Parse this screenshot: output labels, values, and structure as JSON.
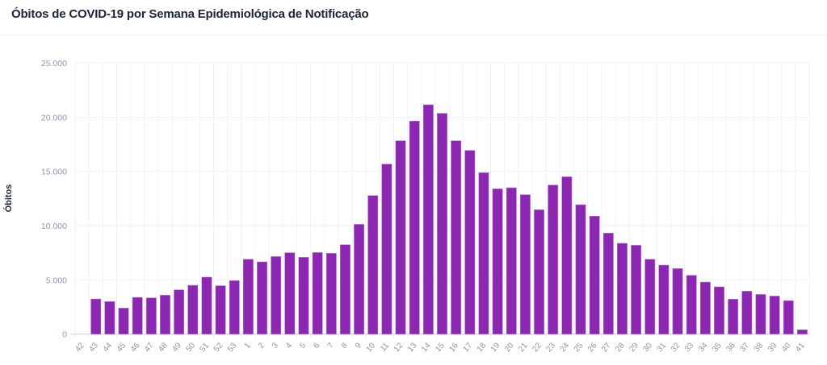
{
  "chart_data": {
    "type": "bar",
    "title": "Óbitos de COVID-19 por Semana Epidemiológica de Notificação",
    "xlabel": "",
    "ylabel": "Óbitos",
    "ylim": [
      0,
      25000
    ],
    "yticks": [
      0,
      5000,
      10000,
      15000,
      20000,
      25000
    ],
    "ytick_labels": [
      "0",
      "5.000",
      "10.000",
      "15.000",
      "20.000",
      "25.000"
    ],
    "grid": true,
    "bar_color": "#8b27b0",
    "categories": [
      "42",
      "43",
      "44",
      "45",
      "46",
      "47",
      "48",
      "49",
      "50",
      "51",
      "52",
      "53",
      "1",
      "2",
      "3",
      "4",
      "5",
      "6",
      "7",
      "8",
      "9",
      "10",
      "11",
      "12",
      "13",
      "14",
      "15",
      "16",
      "17",
      "18",
      "19",
      "20",
      "21",
      "22",
      "23",
      "24",
      "25",
      "26",
      "27",
      "28",
      "29",
      "30",
      "31",
      "32",
      "33",
      "34",
      "35",
      "36",
      "37",
      "38",
      "39",
      "40",
      "41"
    ],
    "values": [
      0,
      3240,
      3000,
      2400,
      3390,
      3340,
      3590,
      4080,
      4500,
      5250,
      4460,
      4930,
      6900,
      6660,
      7150,
      7500,
      7080,
      7520,
      7450,
      8240,
      10120,
      12770,
      15670,
      17820,
      19630,
      21140,
      20350,
      17820,
      16930,
      14880,
      13390,
      13490,
      12850,
      11460,
      13740,
      14500,
      11930,
      10870,
      9310,
      8370,
      8190,
      6900,
      6360,
      6040,
      5420,
      4800,
      4360,
      3220,
      3960,
      3660,
      3510,
      3090,
      400
    ]
  }
}
